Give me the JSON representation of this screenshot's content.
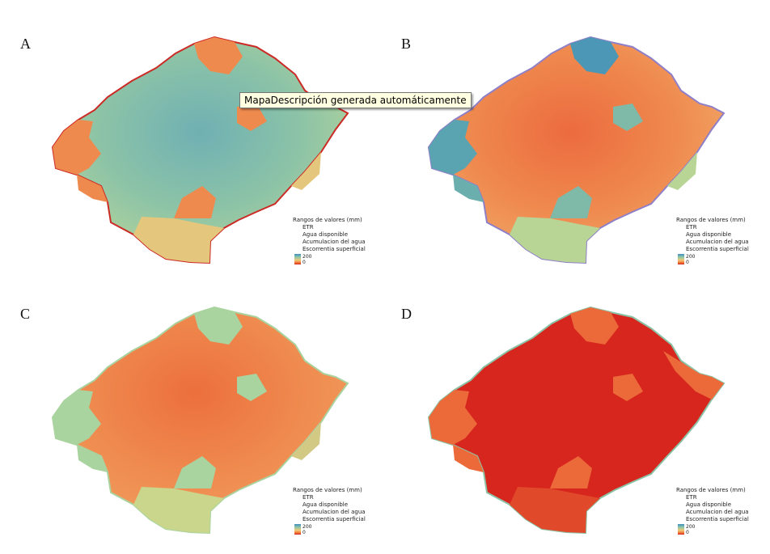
{
  "panels": [
    {
      "id": "A",
      "theme": "teal"
    },
    {
      "id": "B",
      "theme": "orange-b"
    },
    {
      "id": "C",
      "theme": "orange-c"
    },
    {
      "id": "D",
      "theme": "red"
    }
  ],
  "legend": {
    "title": "Rangos de valores (mm)",
    "items": [
      "ETR",
      "Agua disponible",
      "Acumulacion del agua",
      "Escorrentia superficial"
    ],
    "max": "200",
    "min": "0"
  },
  "tooltip": "MapaDescripción generada automáticamente",
  "colors": {
    "teal": "#7ab8b0",
    "green": "#a9d39f",
    "yellow": "#e4c77c",
    "orange": "#ef8a4f",
    "red": "#d7261e",
    "blue": "#3f8fc0"
  }
}
